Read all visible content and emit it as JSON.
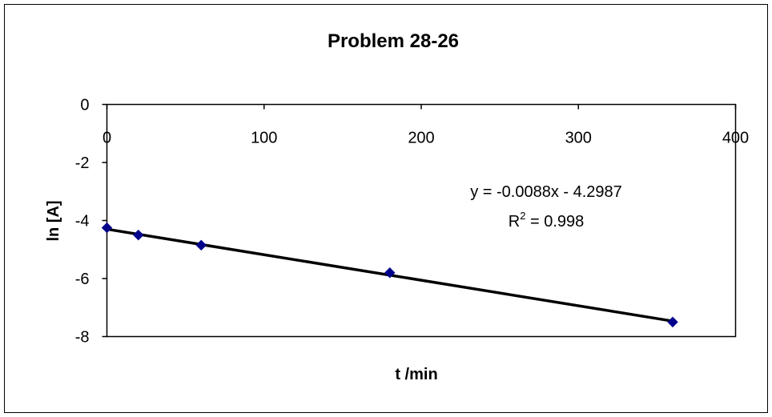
{
  "chart_data": {
    "type": "scatter",
    "title": "Problem 28-26",
    "xlabel": "t /min",
    "ylabel": "ln [A]",
    "xlim": [
      0,
      400
    ],
    "ylim": [
      -8,
      0
    ],
    "x_ticks": [
      "0",
      "100",
      "200",
      "300",
      "400"
    ],
    "y_ticks": [
      "0",
      "-2",
      "-4",
      "-6",
      "-8"
    ],
    "grid": false,
    "legend": "none",
    "series": [
      {
        "x": [
          0,
          20,
          60,
          180,
          360
        ],
        "y": [
          -4.25,
          -4.5,
          -4.85,
          -5.8,
          -7.5
        ],
        "marker": "diamond",
        "color": "#00008B"
      }
    ],
    "trendline": {
      "slope": -0.0088,
      "intercept": -4.2987,
      "color": "#000000",
      "equation_text": "y = -0.0088x - 4.2987",
      "r2_label": "R",
      "r2_exponent": "2",
      "r2_value": " = 0.998"
    }
  }
}
